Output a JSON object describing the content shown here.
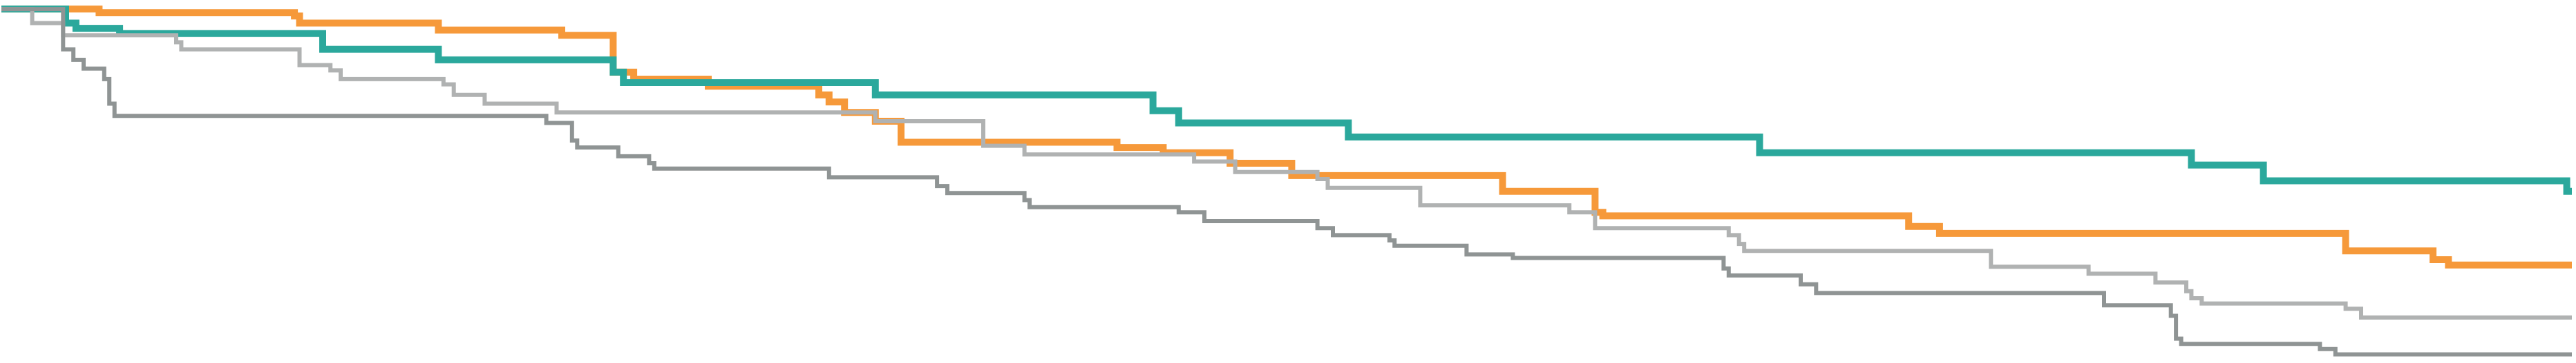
{
  "chart_data": {
    "type": "line",
    "step": true,
    "grid": false,
    "legend": "none",
    "xlim": [
      0,
      1000
    ],
    "ylim": [
      0,
      1
    ],
    "series": [
      {
        "color": "#f6993a",
        "points": [
          [
            0,
            0.99
          ],
          [
            38,
            0.99
          ],
          [
            38,
            0.98
          ],
          [
            114,
            0.98
          ],
          [
            114,
            0.97
          ],
          [
            116,
            0.97
          ],
          [
            116,
            0.95
          ],
          [
            170,
            0.95
          ],
          [
            170,
            0.93
          ],
          [
            218,
            0.93
          ],
          [
            218,
            0.915
          ],
          [
            238,
            0.915
          ],
          [
            238,
            0.81
          ],
          [
            246,
            0.81
          ],
          [
            246,
            0.79
          ],
          [
            275,
            0.79
          ],
          [
            275,
            0.77
          ],
          [
            318,
            0.77
          ],
          [
            318,
            0.745
          ],
          [
            322,
            0.745
          ],
          [
            322,
            0.725
          ],
          [
            328,
            0.725
          ],
          [
            328,
            0.695
          ],
          [
            340,
            0.695
          ],
          [
            340,
            0.67
          ],
          [
            350,
            0.67
          ],
          [
            350,
            0.61
          ],
          [
            434,
            0.61
          ],
          [
            434,
            0.595
          ],
          [
            452,
            0.595
          ],
          [
            452,
            0.58
          ],
          [
            478,
            0.58
          ],
          [
            478,
            0.55
          ],
          [
            502,
            0.55
          ],
          [
            502,
            0.515
          ],
          [
            584,
            0.515
          ],
          [
            584,
            0.47
          ],
          [
            620,
            0.47
          ],
          [
            620,
            0.41
          ],
          [
            623,
            0.41
          ],
          [
            623,
            0.4
          ],
          [
            742,
            0.4
          ],
          [
            742,
            0.37
          ],
          [
            754,
            0.37
          ],
          [
            754,
            0.35
          ],
          [
            912,
            0.35
          ],
          [
            912,
            0.3
          ],
          [
            946,
            0.3
          ],
          [
            946,
            0.275
          ],
          [
            952,
            0.275
          ],
          [
            952,
            0.26
          ],
          [
            1000,
            0.26
          ]
        ]
      },
      {
        "color": "#2ba89c",
        "points": [
          [
            0,
            0.99
          ],
          [
            25,
            0.99
          ],
          [
            25,
            0.95
          ],
          [
            29,
            0.95
          ],
          [
            29,
            0.935
          ],
          [
            46,
            0.935
          ],
          [
            46,
            0.92
          ],
          [
            125,
            0.92
          ],
          [
            125,
            0.875
          ],
          [
            170,
            0.875
          ],
          [
            170,
            0.845
          ],
          [
            238,
            0.845
          ],
          [
            238,
            0.81
          ],
          [
            242,
            0.81
          ],
          [
            242,
            0.78
          ],
          [
            340,
            0.78
          ],
          [
            340,
            0.745
          ],
          [
            448,
            0.745
          ],
          [
            448,
            0.7
          ],
          [
            458,
            0.7
          ],
          [
            458,
            0.665
          ],
          [
            524,
            0.665
          ],
          [
            524,
            0.625
          ],
          [
            684,
            0.625
          ],
          [
            684,
            0.58
          ],
          [
            852,
            0.58
          ],
          [
            852,
            0.545
          ],
          [
            880,
            0.545
          ],
          [
            880,
            0.5
          ],
          [
            998,
            0.5
          ],
          [
            998,
            0.47
          ],
          [
            1000,
            0.47
          ]
        ]
      },
      {
        "color": "#b0b2b2",
        "points": [
          [
            0,
            0.99
          ],
          [
            12,
            0.99
          ],
          [
            12,
            0.95
          ],
          [
            24,
            0.95
          ],
          [
            24,
            0.915
          ],
          [
            68,
            0.915
          ],
          [
            68,
            0.895
          ],
          [
            70,
            0.895
          ],
          [
            70,
            0.875
          ],
          [
            116,
            0.875
          ],
          [
            116,
            0.83
          ],
          [
            128,
            0.83
          ],
          [
            128,
            0.815
          ],
          [
            132,
            0.815
          ],
          [
            132,
            0.79
          ],
          [
            172,
            0.79
          ],
          [
            172,
            0.775
          ],
          [
            176,
            0.775
          ],
          [
            176,
            0.745
          ],
          [
            188,
            0.745
          ],
          [
            188,
            0.72
          ],
          [
            216,
            0.72
          ],
          [
            216,
            0.695
          ],
          [
            340,
            0.695
          ],
          [
            340,
            0.67
          ],
          [
            382,
            0.67
          ],
          [
            382,
            0.6
          ],
          [
            398,
            0.6
          ],
          [
            398,
            0.575
          ],
          [
            464,
            0.575
          ],
          [
            464,
            0.555
          ],
          [
            480,
            0.555
          ],
          [
            480,
            0.525
          ],
          [
            512,
            0.525
          ],
          [
            512,
            0.505
          ],
          [
            516,
            0.505
          ],
          [
            516,
            0.48
          ],
          [
            552,
            0.48
          ],
          [
            552,
            0.455
          ],
          [
            552,
            0.455
          ],
          [
            552,
            0.43
          ],
          [
            610,
            0.43
          ],
          [
            610,
            0.41
          ],
          [
            620,
            0.41
          ],
          [
            620,
            0.365
          ],
          [
            672,
            0.365
          ],
          [
            672,
            0.345
          ],
          [
            676,
            0.345
          ],
          [
            676,
            0.32
          ],
          [
            678,
            0.32
          ],
          [
            678,
            0.3
          ],
          [
            774,
            0.3
          ],
          [
            774,
            0.255
          ],
          [
            812,
            0.255
          ],
          [
            812,
            0.235
          ],
          [
            838,
            0.235
          ],
          [
            838,
            0.21
          ],
          [
            850,
            0.21
          ],
          [
            850,
            0.185
          ],
          [
            852,
            0.185
          ],
          [
            852,
            0.165
          ],
          [
            856,
            0.165
          ],
          [
            856,
            0.15
          ],
          [
            912,
            0.15
          ],
          [
            912,
            0.135
          ],
          [
            918,
            0.135
          ],
          [
            918,
            0.11
          ],
          [
            1000,
            0.11
          ]
        ]
      },
      {
        "color": "#8f9494",
        "points": [
          [
            0,
            0.99
          ],
          [
            24,
            0.99
          ],
          [
            24,
            0.875
          ],
          [
            28,
            0.875
          ],
          [
            28,
            0.845
          ],
          [
            32,
            0.845
          ],
          [
            32,
            0.82
          ],
          [
            40,
            0.82
          ],
          [
            40,
            0.79
          ],
          [
            42,
            0.79
          ],
          [
            42,
            0.72
          ],
          [
            44,
            0.72
          ],
          [
            44,
            0.685
          ],
          [
            212,
            0.685
          ],
          [
            212,
            0.665
          ],
          [
            222,
            0.665
          ],
          [
            222,
            0.615
          ],
          [
            224,
            0.615
          ],
          [
            224,
            0.595
          ],
          [
            240,
            0.595
          ],
          [
            240,
            0.57
          ],
          [
            252,
            0.57
          ],
          [
            252,
            0.55
          ],
          [
            254,
            0.55
          ],
          [
            254,
            0.535
          ],
          [
            322,
            0.535
          ],
          [
            322,
            0.51
          ],
          [
            364,
            0.51
          ],
          [
            364,
            0.485
          ],
          [
            368,
            0.485
          ],
          [
            368,
            0.465
          ],
          [
            398,
            0.465
          ],
          [
            398,
            0.445
          ],
          [
            400,
            0.445
          ],
          [
            400,
            0.425
          ],
          [
            458,
            0.425
          ],
          [
            458,
            0.41
          ],
          [
            468,
            0.41
          ],
          [
            468,
            0.385
          ],
          [
            512,
            0.385
          ],
          [
            512,
            0.365
          ],
          [
            518,
            0.365
          ],
          [
            518,
            0.345
          ],
          [
            540,
            0.345
          ],
          [
            540,
            0.33
          ],
          [
            542,
            0.33
          ],
          [
            542,
            0.315
          ],
          [
            570,
            0.315
          ],
          [
            570,
            0.29
          ],
          [
            588,
            0.29
          ],
          [
            588,
            0.28
          ],
          [
            670,
            0.28
          ],
          [
            670,
            0.25
          ],
          [
            672,
            0.25
          ],
          [
            672,
            0.23
          ],
          [
            700,
            0.23
          ],
          [
            700,
            0.205
          ],
          [
            706,
            0.205
          ],
          [
            706,
            0.18
          ],
          [
            818,
            0.18
          ],
          [
            818,
            0.145
          ],
          [
            844,
            0.145
          ],
          [
            844,
            0.115
          ],
          [
            846,
            0.115
          ],
          [
            846,
            0.05
          ],
          [
            848,
            0.05
          ],
          [
            848,
            0.035
          ],
          [
            902,
            0.035
          ],
          [
            902,
            0.02
          ],
          [
            908,
            0.02
          ],
          [
            908,
            0.005
          ],
          [
            1000,
            0.005
          ]
        ]
      }
    ]
  }
}
